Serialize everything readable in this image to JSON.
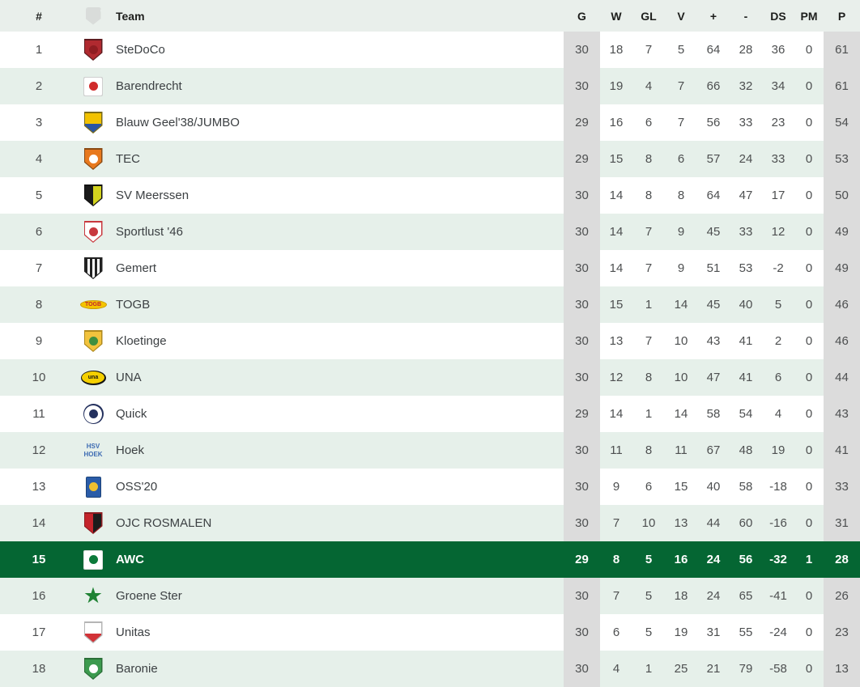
{
  "colors": {
    "header_bg": "#e9efeb",
    "stripe_bg": "#e6f0ea",
    "gray_column": "#dcdcdc",
    "highlight_row": "#056633",
    "highlight_text": "#ffffff"
  },
  "table": {
    "columns": {
      "rank": "#",
      "team": "Team",
      "logo_icon": "shield-placeholder",
      "stats": [
        "G",
        "W",
        "GL",
        "V",
        "+",
        "-",
        "DS",
        "PM",
        "P"
      ]
    },
    "teams": [
      {
        "rank": 1,
        "name": "SteDoCo",
        "g": 30,
        "w": 18,
        "gl": 7,
        "v": 5,
        "plus": 64,
        "minus": 28,
        "ds": 36,
        "pm": 0,
        "p": 61,
        "highlighted": false,
        "logo": {
          "icon": "stedoco-crest",
          "shape": "shield",
          "c1": "#b02a30",
          "border": "#5e1b1f",
          "dot": "#8f1d22"
        }
      },
      {
        "rank": 2,
        "name": "Barendrecht",
        "g": 30,
        "w": 19,
        "gl": 4,
        "v": 7,
        "plus": 66,
        "minus": 32,
        "ds": 34,
        "pm": 0,
        "p": 61,
        "highlighted": false,
        "logo": {
          "icon": "barendrecht-crest",
          "shape": "square",
          "c1": "#ffffff",
          "border": "#cfcfcf",
          "dot": "#d02b2b"
        }
      },
      {
        "rank": 3,
        "name": "Blauw Geel'38/JUMBO",
        "g": 29,
        "w": 16,
        "gl": 6,
        "v": 7,
        "plus": 56,
        "minus": 33,
        "ds": 23,
        "pm": 0,
        "p": 54,
        "highlighted": false,
        "logo": {
          "icon": "blauw-geel-crest",
          "shape": "shield",
          "c1": "#f2c200",
          "c2": "#2b55a2",
          "split": "h",
          "border": "#7a6b18"
        }
      },
      {
        "rank": 4,
        "name": "TEC",
        "g": 29,
        "w": 15,
        "gl": 8,
        "v": 6,
        "plus": 57,
        "minus": 24,
        "ds": 33,
        "pm": 0,
        "p": 53,
        "highlighted": false,
        "logo": {
          "icon": "tec-crest",
          "shape": "shield",
          "c1": "#e8791e",
          "border": "#8a4a14",
          "dot": "#ffffff"
        }
      },
      {
        "rank": 5,
        "name": "SV Meerssen",
        "g": 30,
        "w": 14,
        "gl": 8,
        "v": 8,
        "plus": 64,
        "minus": 47,
        "ds": 17,
        "pm": 0,
        "p": 50,
        "highlighted": false,
        "logo": {
          "icon": "sv-meerssen-crest",
          "shape": "shield",
          "c1": "#1a1a1a",
          "c2": "#d3d31e",
          "split": "v",
          "border": "#111111"
        }
      },
      {
        "rank": 6,
        "name": "Sportlust '46",
        "g": 30,
        "w": 14,
        "gl": 7,
        "v": 9,
        "plus": 45,
        "minus": 33,
        "ds": 12,
        "pm": 0,
        "p": 49,
        "highlighted": false,
        "logo": {
          "icon": "sportlust-crest",
          "shape": "shield",
          "c1": "#ffffff",
          "border": "#c8383e",
          "dot": "#c8383e"
        }
      },
      {
        "rank": 7,
        "name": "Gemert",
        "g": 30,
        "w": 14,
        "gl": 7,
        "v": 9,
        "plus": 51,
        "minus": 53,
        "ds": -2,
        "pm": 0,
        "p": 49,
        "highlighted": false,
        "logo": {
          "icon": "gemert-crest",
          "shape": "shield",
          "c1": "#222222",
          "c2": "#ffffff",
          "split": "stripes",
          "border": "#222222"
        }
      },
      {
        "rank": 8,
        "name": "TOGB",
        "g": 30,
        "w": 15,
        "gl": 1,
        "v": 14,
        "plus": 45,
        "minus": 40,
        "ds": 5,
        "pm": 0,
        "p": 46,
        "highlighted": false,
        "logo": {
          "icon": "togb-crest",
          "shape": "oval-flat",
          "c1": "#f5c400",
          "border": "#c79e06",
          "label": "TOGB",
          "labelColor": "#c2272d"
        }
      },
      {
        "rank": 9,
        "name": "Kloetinge",
        "g": 30,
        "w": 13,
        "gl": 7,
        "v": 10,
        "plus": 43,
        "minus": 41,
        "ds": 2,
        "pm": 0,
        "p": 46,
        "highlighted": false,
        "logo": {
          "icon": "kloetinge-crest",
          "shape": "shield",
          "c1": "#f2c33d",
          "border": "#b08a1e",
          "dot": "#3f8f3f"
        }
      },
      {
        "rank": 10,
        "name": "UNA",
        "g": 30,
        "w": 12,
        "gl": 8,
        "v": 10,
        "plus": 47,
        "minus": 41,
        "ds": 6,
        "pm": 0,
        "p": 44,
        "highlighted": false,
        "logo": {
          "icon": "una-crest",
          "shape": "oval",
          "c1": "#f5d000",
          "border": "#141414",
          "label": "una",
          "labelColor": "#141414"
        }
      },
      {
        "rank": 11,
        "name": "Quick",
        "g": 29,
        "w": 14,
        "gl": 1,
        "v": 14,
        "plus": 58,
        "minus": 54,
        "ds": 4,
        "pm": 0,
        "p": 43,
        "highlighted": false,
        "logo": {
          "icon": "quick-crest",
          "shape": "circle",
          "c1": "#ffffff",
          "border": "#24315e",
          "dot": "#24315e"
        }
      },
      {
        "rank": 12,
        "name": "Hoek",
        "g": 30,
        "w": 11,
        "gl": 8,
        "v": 11,
        "plus": 67,
        "minus": 48,
        "ds": 19,
        "pm": 0,
        "p": 41,
        "highlighted": false,
        "logo": {
          "icon": "hoek-crest",
          "shape": "textlogo",
          "c1": "#3d6bb3",
          "label": "HSV\nHOEK"
        }
      },
      {
        "rank": 13,
        "name": "OSS'20",
        "g": 30,
        "w": 9,
        "gl": 6,
        "v": 15,
        "plus": 40,
        "minus": 58,
        "ds": -18,
        "pm": 0,
        "p": 33,
        "highlighted": false,
        "logo": {
          "icon": "oss20-crest",
          "shape": "rect",
          "c1": "#2a5ca8",
          "border": "#1d4379",
          "dot": "#f0c030"
        }
      },
      {
        "rank": 14,
        "name": "OJC ROSMALEN",
        "g": 30,
        "w": 7,
        "gl": 10,
        "v": 13,
        "plus": 44,
        "minus": 60,
        "ds": -16,
        "pm": 0,
        "p": 31,
        "highlighted": false,
        "logo": {
          "icon": "ojc-rosmalen-crest",
          "shape": "shield",
          "c1": "#c4242b",
          "c2": "#1c1c1c",
          "split": "v",
          "border": "#8f1b20"
        }
      },
      {
        "rank": 15,
        "name": "AWC",
        "g": 29,
        "w": 8,
        "gl": 5,
        "v": 16,
        "plus": 24,
        "minus": 56,
        "ds": -32,
        "pm": 1,
        "p": 28,
        "highlighted": true,
        "logo": {
          "icon": "awc-crest",
          "shape": "square",
          "c1": "#ffffff",
          "border": "#e2e2e2",
          "dot": "#0c7a3a"
        }
      },
      {
        "rank": 16,
        "name": "Groene Ster",
        "g": 30,
        "w": 7,
        "gl": 5,
        "v": 18,
        "plus": 24,
        "minus": 65,
        "ds": -41,
        "pm": 0,
        "p": 26,
        "highlighted": false,
        "logo": {
          "icon": "groene-ster-crest",
          "shape": "star",
          "c1": "#1f8234"
        }
      },
      {
        "rank": 17,
        "name": "Unitas",
        "g": 30,
        "w": 6,
        "gl": 5,
        "v": 19,
        "plus": 31,
        "minus": 55,
        "ds": -24,
        "pm": 0,
        "p": 23,
        "highlighted": false,
        "logo": {
          "icon": "unitas-crest",
          "shape": "shield",
          "c1": "#ffffff",
          "c2": "#d23237",
          "split": "h",
          "border": "#b5b5b5"
        }
      },
      {
        "rank": 18,
        "name": "Baronie",
        "g": 30,
        "w": 4,
        "gl": 1,
        "v": 25,
        "plus": 21,
        "minus": 79,
        "ds": -58,
        "pm": 0,
        "p": 13,
        "highlighted": false,
        "logo": {
          "icon": "baronie-crest",
          "shape": "shield",
          "c1": "#3c9a4e",
          "border": "#2a6e37",
          "dot": "#ffffff"
        }
      }
    ]
  }
}
